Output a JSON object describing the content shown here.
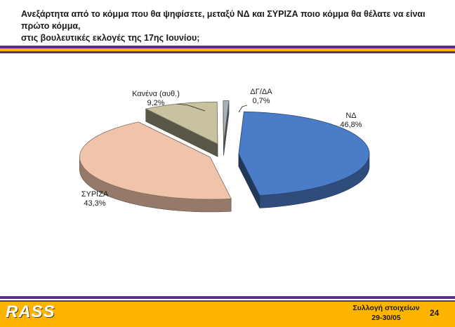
{
  "header": {
    "title_line1": "Ανεξάρτητα από το κόμμα που θα ψηφίσετε, μεταξύ ΝΔ και ΣΥΡΙΖΑ ποιο κόμμα θα θέλατε να είναι πρώτο κόμμα,",
    "title_line2": "στις βουλευτικές εκλογές της 17ης Ιουνίου;"
  },
  "colors": {
    "purple": "#5b2d8c",
    "orange": "#ffb400"
  },
  "chart_data": {
    "type": "pie",
    "title": "",
    "slices": [
      {
        "label": "ΝΔ",
        "value": 46.8,
        "value_label": "46,8%",
        "color": "#4a7cc8"
      },
      {
        "label": "ΣΥΡΙΖΑ",
        "value": 43.3,
        "value_label": "43,3%",
        "color": "#f0c4ab"
      },
      {
        "label": "Κανένα (αυθ.)",
        "value": 9.2,
        "value_label": "9,2%",
        "color": "#c8c2a0"
      },
      {
        "label": "ΔΓ/ΔΑ",
        "value": 0.7,
        "value_label": "0,7%",
        "color": "#a8b0b8"
      }
    ],
    "style": "3d-exploded"
  },
  "footer": {
    "logo": "RASS",
    "collection_label": "Συλλογή στοιχείων",
    "collection_dates": "29-30/05",
    "page_number": "24"
  }
}
